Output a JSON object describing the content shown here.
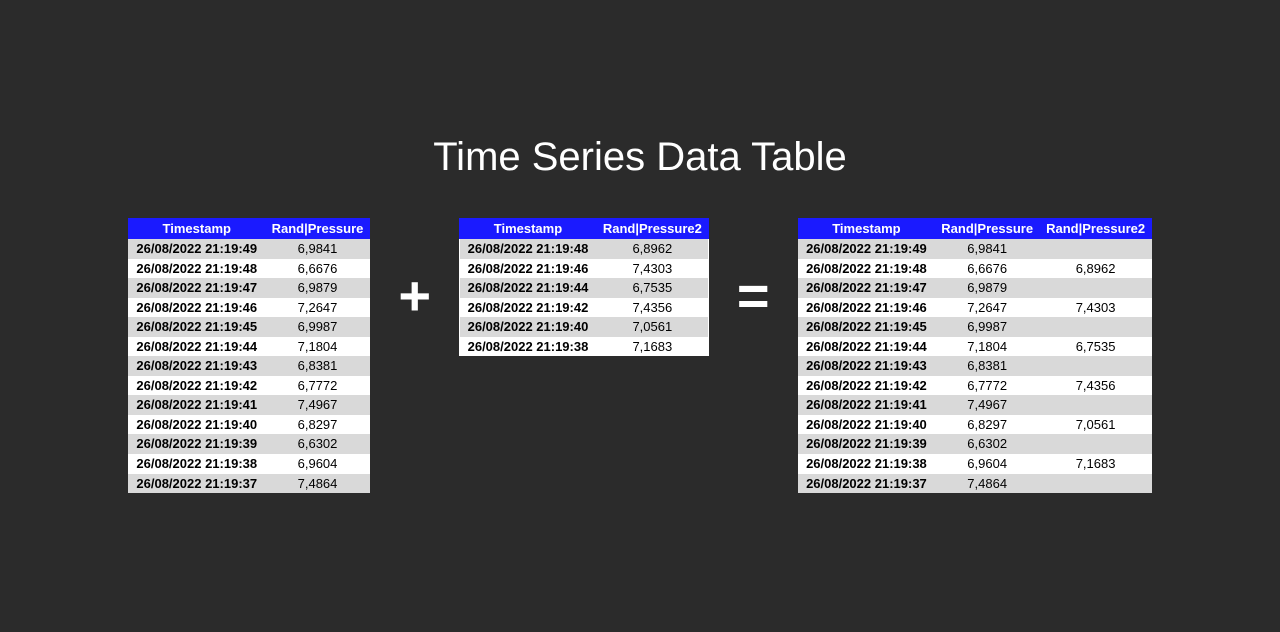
{
  "title": "Time Series Data Table",
  "operators": {
    "plus": "+",
    "equals": "="
  },
  "colors": {
    "background": "#2b2b2b",
    "header_bg": "#1a1aff",
    "header_text": "#ffffff",
    "row_odd": "#d9d9d9",
    "row_even": "#ffffff",
    "title_text": "#ffffff",
    "operator_text": "#ffffff"
  },
  "typography": {
    "title_fontsize": 40,
    "operator_fontsize": 56,
    "table_fontsize": 13,
    "font_family": "Arial"
  },
  "table1": {
    "type": "table",
    "columns": [
      "Timestamp",
      "Rand|Pressure"
    ],
    "rows": [
      [
        "26/08/2022 21:19:49",
        "6,9841"
      ],
      [
        "26/08/2022 21:19:48",
        "6,6676"
      ],
      [
        "26/08/2022 21:19:47",
        "6,9879"
      ],
      [
        "26/08/2022 21:19:46",
        "7,2647"
      ],
      [
        "26/08/2022 21:19:45",
        "6,9987"
      ],
      [
        "26/08/2022 21:19:44",
        "7,1804"
      ],
      [
        "26/08/2022 21:19:43",
        "6,8381"
      ],
      [
        "26/08/2022 21:19:42",
        "6,7772"
      ],
      [
        "26/08/2022 21:19:41",
        "7,4967"
      ],
      [
        "26/08/2022 21:19:40",
        "6,8297"
      ],
      [
        "26/08/2022 21:19:39",
        "6,6302"
      ],
      [
        "26/08/2022 21:19:38",
        "6,9604"
      ],
      [
        "26/08/2022 21:19:37",
        "7,4864"
      ]
    ]
  },
  "table2": {
    "type": "table",
    "columns": [
      "Timestamp",
      "Rand|Pressure2"
    ],
    "rows": [
      [
        "26/08/2022 21:19:48",
        "6,8962"
      ],
      [
        "26/08/2022 21:19:46",
        "7,4303"
      ],
      [
        "26/08/2022 21:19:44",
        "6,7535"
      ],
      [
        "26/08/2022 21:19:42",
        "7,4356"
      ],
      [
        "26/08/2022 21:19:40",
        "7,0561"
      ],
      [
        "26/08/2022 21:19:38",
        "7,1683"
      ]
    ]
  },
  "table3": {
    "type": "table",
    "columns": [
      "Timestamp",
      "Rand|Pressure",
      "Rand|Pressure2"
    ],
    "rows": [
      [
        "26/08/2022 21:19:49",
        "6,9841",
        ""
      ],
      [
        "26/08/2022 21:19:48",
        "6,6676",
        "6,8962"
      ],
      [
        "26/08/2022 21:19:47",
        "6,9879",
        ""
      ],
      [
        "26/08/2022 21:19:46",
        "7,2647",
        "7,4303"
      ],
      [
        "26/08/2022 21:19:45",
        "6,9987",
        ""
      ],
      [
        "26/08/2022 21:19:44",
        "7,1804",
        "6,7535"
      ],
      [
        "26/08/2022 21:19:43",
        "6,8381",
        ""
      ],
      [
        "26/08/2022 21:19:42",
        "6,7772",
        "7,4356"
      ],
      [
        "26/08/2022 21:19:41",
        "7,4967",
        ""
      ],
      [
        "26/08/2022 21:19:40",
        "6,8297",
        "7,0561"
      ],
      [
        "26/08/2022 21:19:39",
        "6,6302",
        ""
      ],
      [
        "26/08/2022 21:19:38",
        "6,9604",
        "7,1683"
      ],
      [
        "26/08/2022 21:19:37",
        "7,4864",
        ""
      ]
    ]
  }
}
